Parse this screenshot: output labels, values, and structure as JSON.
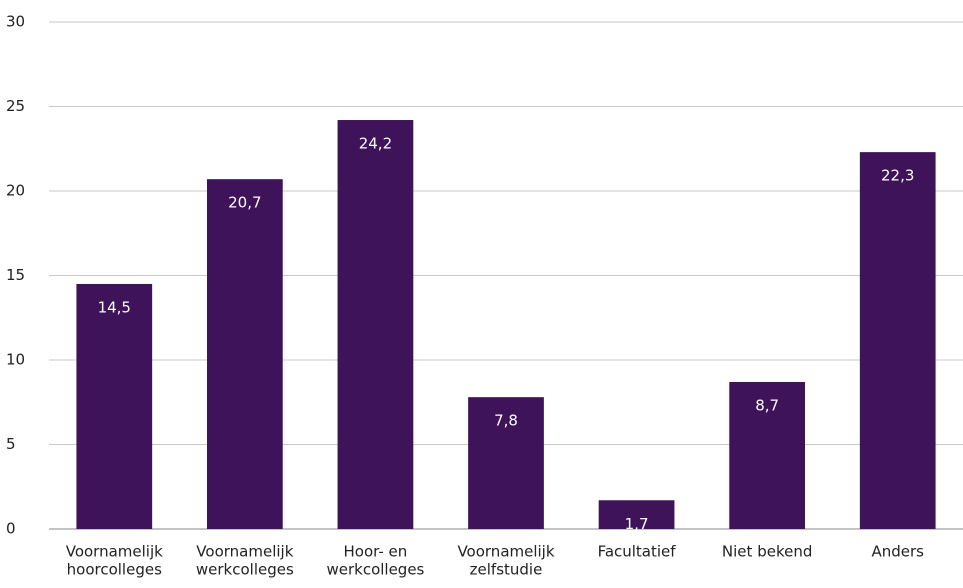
{
  "chart_data": {
    "type": "bar",
    "categories": [
      [
        "Voornamelijk",
        "hoorcolleges"
      ],
      [
        "Voornamelijk",
        "werkcolleges"
      ],
      [
        "Hoor- en",
        "werkcolleges"
      ],
      [
        "Voornamelijk",
        "zelfstudie"
      ],
      [
        "Facultatief"
      ],
      [
        "Niet bekend"
      ],
      [
        "Anders"
      ]
    ],
    "values": [
      14.5,
      20.7,
      24.2,
      7.8,
      1.7,
      8.7,
      22.3
    ],
    "value_labels": [
      "14,5",
      "20,7",
      "24,2",
      "7,8",
      "1,7",
      "8,7",
      "22,3"
    ],
    "color": "#3f1359",
    "ylim": [
      0,
      30
    ],
    "yticks": [
      0,
      5,
      10,
      15,
      20,
      25,
      30
    ],
    "grid": true
  }
}
